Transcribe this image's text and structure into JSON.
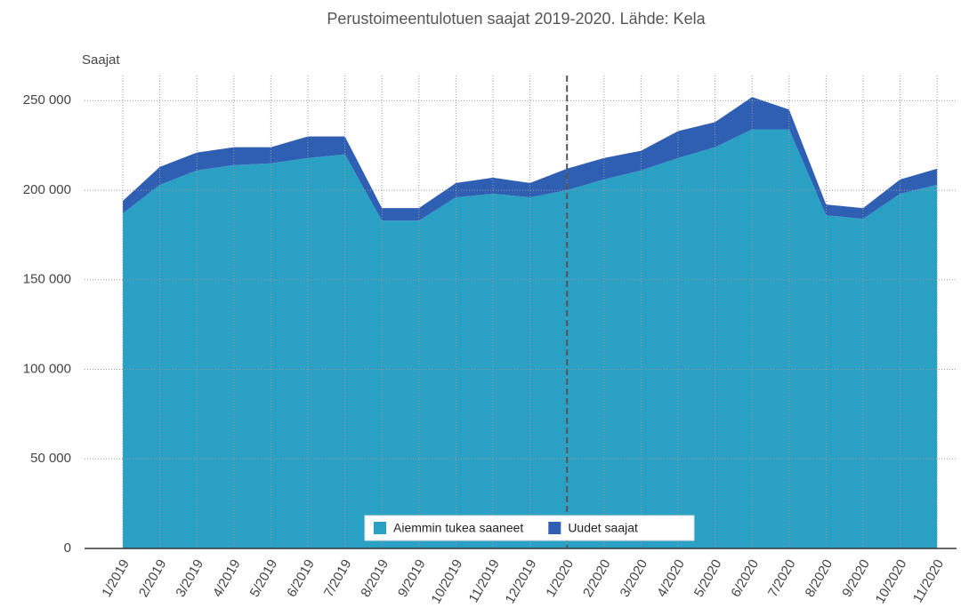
{
  "chart_data": {
    "type": "stacked_area",
    "title": "Perustoimeentulotuen saajat 2019-2020. Lähde: Kela",
    "y_label": "Saajat",
    "categories": [
      "1/2019",
      "2/2019",
      "3/2019",
      "4/2019",
      "5/2019",
      "6/2019",
      "7/2019",
      "8/2019",
      "9/2019",
      "10/2019",
      "11/2019",
      "12/2019",
      "1/2020",
      "2/2020",
      "3/2020",
      "4/2020",
      "5/2020",
      "6/2020",
      "7/2020",
      "8/2020",
      "9/2020",
      "10/2020",
      "11/2020"
    ],
    "series": [
      {
        "name": "Aiemmin tukea saaneet",
        "color": "#2aa0c4",
        "values": [
          187000,
          203000,
          211000,
          214000,
          215000,
          218000,
          220000,
          183000,
          183000,
          196000,
          198000,
          196000,
          200000,
          206000,
          211000,
          218000,
          224000,
          234000,
          234000,
          186000,
          184000,
          198000,
          203000
        ]
      },
      {
        "name": "Uudet saajat",
        "color": "#2f5fb3",
        "values": [
          7000,
          10000,
          10000,
          10000,
          9000,
          12000,
          10000,
          7000,
          7000,
          8000,
          9000,
          8000,
          12000,
          12000,
          11000,
          15000,
          14000,
          18000,
          11000,
          6000,
          6000,
          8000,
          9000
        ]
      }
    ],
    "ylim": [
      0,
      264000
    ],
    "yticks": [
      0,
      {
        "value": 50000,
        "label": "50 000"
      },
      {
        "value": 100000,
        "label": "100 000"
      },
      {
        "value": 150000,
        "label": "150 000"
      },
      {
        "value": 200000,
        "label": "200 000"
      },
      {
        "value": 250000,
        "label": "250 000"
      }
    ],
    "grid": true,
    "legend": "bottom",
    "vline_category": "1/2020"
  }
}
